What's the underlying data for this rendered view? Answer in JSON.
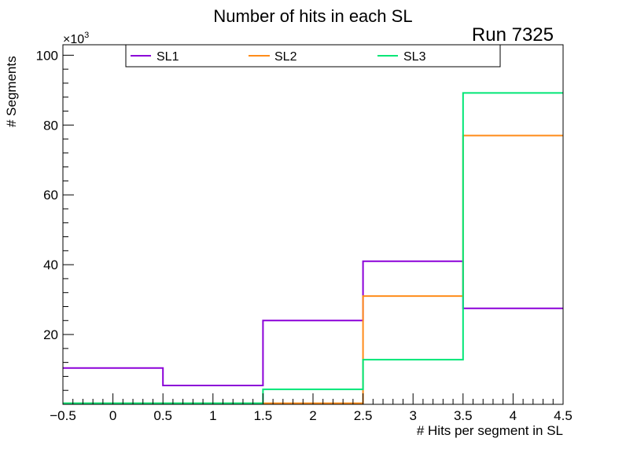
{
  "chart_data": {
    "type": "step",
    "title": "Number of hits in each SL",
    "run_label": "Run 7325",
    "xlabel": "# Hits per segment in SL",
    "ylabel": "# Segments",
    "y_exponent_label": "×10",
    "y_exponent_power": "3",
    "xlim": [
      -0.5,
      4.5
    ],
    "ylim": [
      0,
      103
    ],
    "x_ticks": [
      -0.5,
      0,
      0.5,
      1,
      1.5,
      2,
      2.5,
      3,
      3.5,
      4,
      4.5
    ],
    "x_tick_labels": [
      "−0.5",
      "0",
      "0.5",
      "1",
      "1.5",
      "2",
      "2.5",
      "3",
      "3.5",
      "4",
      "4.5"
    ],
    "y_ticks": [
      20,
      40,
      60,
      80,
      100
    ],
    "y_tick_labels": [
      "20",
      "40",
      "60",
      "80",
      "100"
    ],
    "bin_edges": [
      -0.5,
      0.5,
      1.5,
      2.5,
      3.5,
      4.5
    ],
    "series": [
      {
        "name": "SL1",
        "color": "#8b00d8",
        "values": [
          10.4,
          5.4,
          24.0,
          41.0,
          27.5
        ]
      },
      {
        "name": "SL2",
        "color": "#ff8c1a",
        "values": [
          0.3,
          0.3,
          0.3,
          31.0,
          77.0
        ]
      },
      {
        "name": "SL3",
        "color": "#00e676",
        "values": [
          0.3,
          0.3,
          4.3,
          12.8,
          89.2
        ]
      }
    ],
    "legend_position": "top"
  }
}
